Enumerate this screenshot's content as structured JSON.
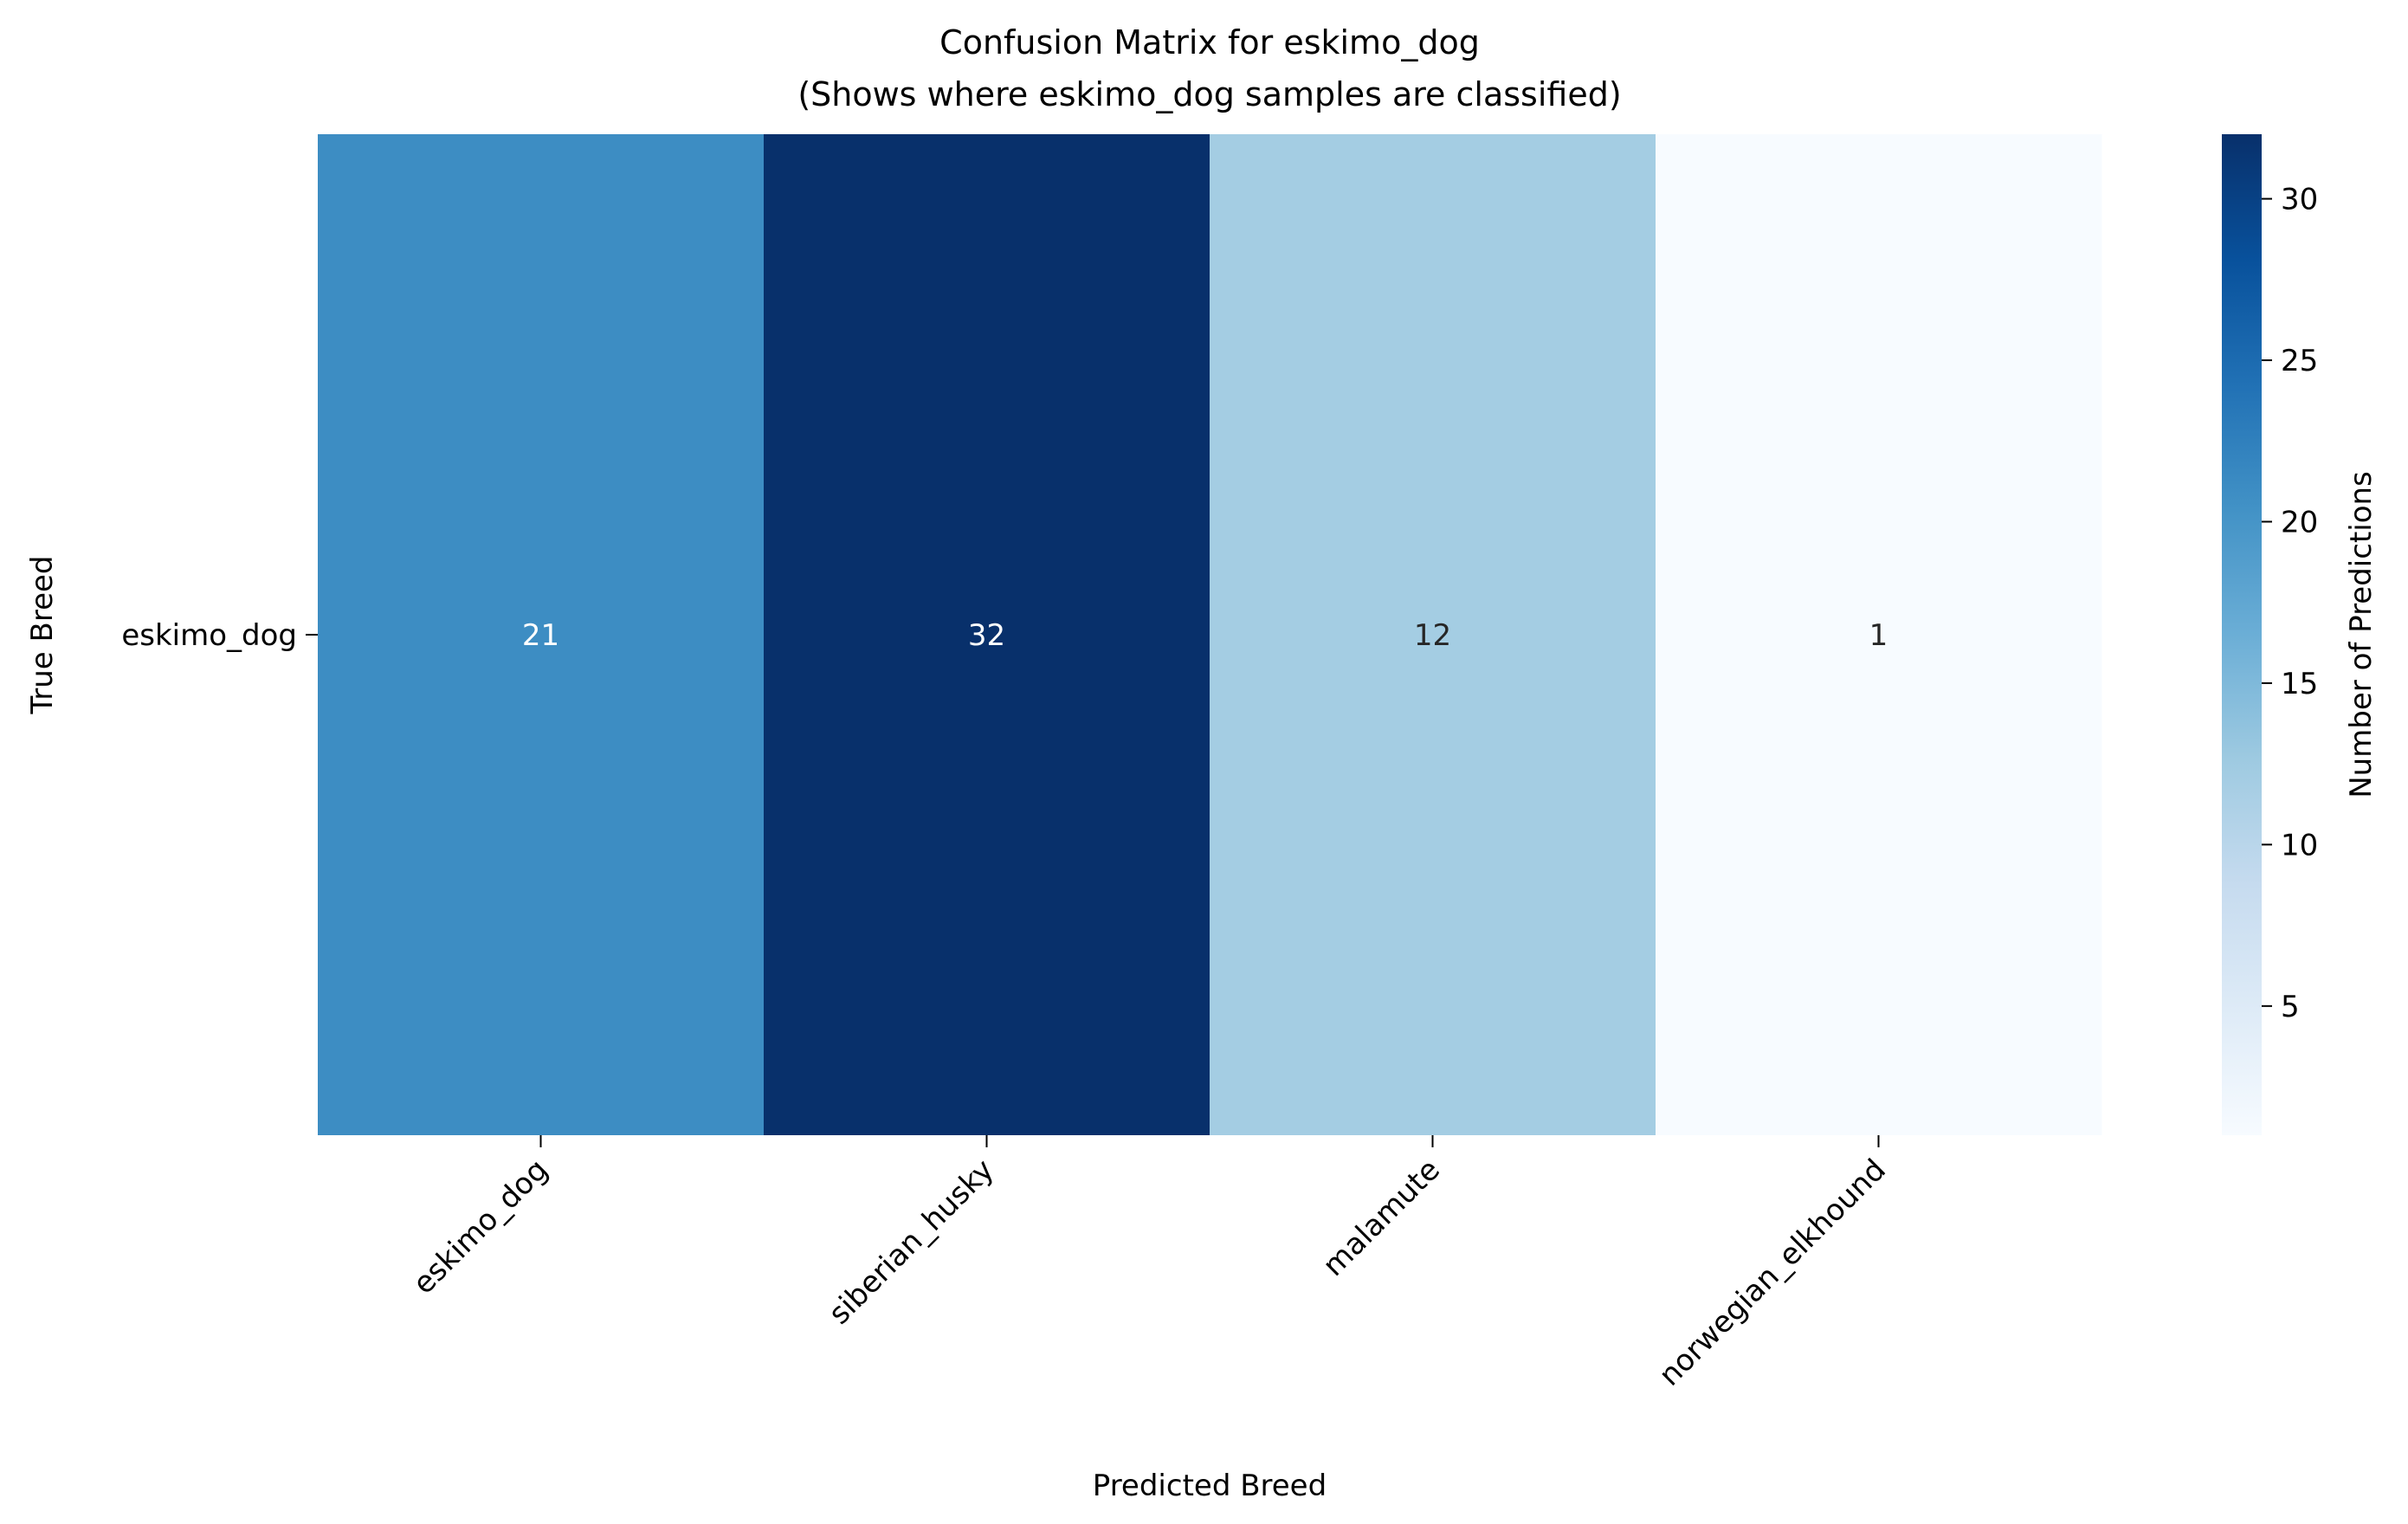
{
  "chart_data": {
    "type": "heatmap",
    "title": "Confusion Matrix for eskimo_dog",
    "subtitle": "(Shows where eskimo_dog samples are classified)",
    "xlabel": "Predicted Breed",
    "ylabel": "True Breed",
    "x_categories": [
      "eskimo_dog",
      "siberian_husky",
      "malamute",
      "norwegian_elkhound"
    ],
    "y_categories": [
      "eskimo_dog"
    ],
    "values": [
      [
        21,
        32,
        12,
        1
      ]
    ],
    "colorbar": {
      "label": "Number of Predictions",
      "range": [
        1,
        32
      ],
      "ticks": [
        5,
        10,
        15,
        20,
        25,
        30
      ],
      "colormap": "Blues"
    },
    "colors": {
      "low": "#f7fbff",
      "high": "#08306b",
      "annotation_light": "#ffffff",
      "annotation_dark": "#262626"
    }
  }
}
